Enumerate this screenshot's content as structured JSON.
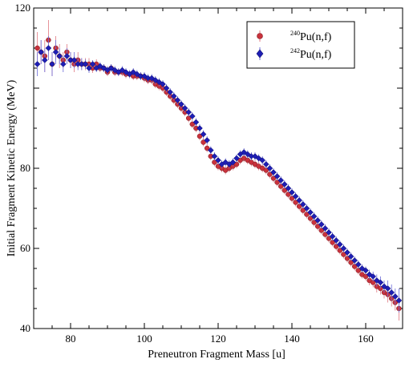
{
  "chart_data": {
    "type": "scatter",
    "xlabel": "Preneutron Fragment Mass [u]",
    "ylabel": "Initial Fragment Kinetic Energy (MeV)",
    "xlim": [
      70,
      170
    ],
    "ylim": [
      40,
      120
    ],
    "xticks": [
      80,
      100,
      120,
      140,
      160
    ],
    "yticks": [
      40,
      60,
      80,
      120
    ],
    "grid": false,
    "legend_position": "top-right",
    "series": [
      {
        "name_mass": "240",
        "name_rest": "Pu(n,f)",
        "marker": "circle",
        "color": "#c8323c",
        "error_color": "#e07880",
        "points": [
          [
            71,
            110,
            4
          ],
          [
            72,
            109,
            3
          ],
          [
            73,
            108,
            4
          ],
          [
            74,
            112,
            5
          ],
          [
            75,
            106,
            3
          ],
          [
            76,
            110,
            3
          ],
          [
            77,
            108,
            3
          ],
          [
            78,
            107,
            2
          ],
          [
            79,
            109,
            2
          ],
          [
            80,
            107,
            2
          ],
          [
            81,
            106,
            2
          ],
          [
            82,
            107,
            2
          ],
          [
            83,
            106,
            1.5
          ],
          [
            84,
            106,
            1.5
          ],
          [
            85,
            106,
            1.5
          ],
          [
            86,
            105,
            1.2
          ],
          [
            87,
            106,
            1.2
          ],
          [
            88,
            105,
            1
          ],
          [
            89,
            105,
            1
          ],
          [
            90,
            104,
            1
          ],
          [
            91,
            105,
            1
          ],
          [
            92,
            104,
            1
          ],
          [
            93,
            104,
            1
          ],
          [
            94,
            104,
            1
          ],
          [
            95,
            103.5,
            1
          ],
          [
            96,
            103.5,
            1
          ],
          [
            97,
            103,
            1
          ],
          [
            98,
            103,
            1
          ],
          [
            99,
            103,
            1
          ],
          [
            100,
            102.5,
            1
          ],
          [
            101,
            102,
            1
          ],
          [
            102,
            102,
            1
          ],
          [
            103,
            101,
            1
          ],
          [
            104,
            100.5,
            1
          ],
          [
            105,
            100,
            1
          ],
          [
            106,
            99,
            1
          ],
          [
            107,
            98,
            1
          ],
          [
            108,
            97,
            1
          ],
          [
            109,
            96,
            1
          ],
          [
            110,
            95,
            1
          ],
          [
            111,
            94,
            1
          ],
          [
            112,
            92.5,
            1
          ],
          [
            113,
            91,
            1
          ],
          [
            114,
            90,
            1
          ],
          [
            115,
            88,
            1
          ],
          [
            116,
            86.5,
            1
          ],
          [
            117,
            85,
            1
          ],
          [
            118,
            83,
            1
          ],
          [
            119,
            81.5,
            1
          ],
          [
            120,
            80.5,
            1
          ],
          [
            121,
            80,
            1
          ],
          [
            122,
            79.5,
            1
          ],
          [
            123,
            80,
            1
          ],
          [
            124,
            80.5,
            1
          ],
          [
            125,
            81,
            1
          ],
          [
            126,
            82,
            1
          ],
          [
            127,
            82.5,
            1
          ],
          [
            128,
            82,
            1
          ],
          [
            129,
            81.5,
            1
          ],
          [
            130,
            81,
            1
          ],
          [
            131,
            80.5,
            1
          ],
          [
            132,
            80,
            1
          ],
          [
            133,
            79.5,
            1
          ],
          [
            134,
            78.5,
            1
          ],
          [
            135,
            77.5,
            1
          ],
          [
            136,
            76.5,
            1
          ],
          [
            137,
            75.5,
            1
          ],
          [
            138,
            74.5,
            1
          ],
          [
            139,
            73.5,
            1
          ],
          [
            140,
            72.5,
            1
          ],
          [
            141,
            71.5,
            1
          ],
          [
            142,
            70.5,
            1
          ],
          [
            143,
            69.5,
            1
          ],
          [
            144,
            68.5,
            1
          ],
          [
            145,
            67.5,
            1
          ],
          [
            146,
            66.5,
            1
          ],
          [
            147,
            65.5,
            1
          ],
          [
            148,
            64.5,
            1
          ],
          [
            149,
            63.5,
            1
          ],
          [
            150,
            62.5,
            1
          ],
          [
            151,
            61.5,
            1
          ],
          [
            152,
            60.5,
            1
          ],
          [
            153,
            59.5,
            1
          ],
          [
            154,
            58.5,
            1
          ],
          [
            155,
            57.5,
            1
          ],
          [
            156,
            56.5,
            1
          ],
          [
            157,
            55.5,
            1
          ],
          [
            158,
            54.5,
            1
          ],
          [
            159,
            53.5,
            1
          ],
          [
            160,
            53,
            1
          ],
          [
            161,
            52,
            1.2
          ],
          [
            162,
            51.5,
            1.2
          ],
          [
            163,
            50.5,
            1.5
          ],
          [
            164,
            50,
            1.5
          ],
          [
            165,
            49,
            1.5
          ],
          [
            166,
            48.5,
            2
          ],
          [
            167,
            47.5,
            2
          ],
          [
            168,
            46.5,
            2
          ],
          [
            169,
            45,
            3
          ]
        ]
      },
      {
        "name_mass": "242",
        "name_rest": "Pu(n,f)",
        "marker": "diamond",
        "color": "#1e1eb4",
        "error_color": "#6a6ad8",
        "points": [
          [
            71,
            106,
            3
          ],
          [
            72,
            109,
            3
          ],
          [
            73,
            107,
            3
          ],
          [
            74,
            110,
            3
          ],
          [
            75,
            106,
            3
          ],
          [
            76,
            109,
            3
          ],
          [
            77,
            108,
            2
          ],
          [
            78,
            106,
            2
          ],
          [
            79,
            108,
            2
          ],
          [
            80,
            107,
            2
          ],
          [
            81,
            107,
            2
          ],
          [
            82,
            106,
            1.5
          ],
          [
            83,
            106,
            1.5
          ],
          [
            84,
            106,
            1.2
          ],
          [
            85,
            105,
            1.2
          ],
          [
            86,
            106,
            1
          ],
          [
            87,
            105,
            1
          ],
          [
            88,
            105.5,
            1
          ],
          [
            89,
            105,
            1
          ],
          [
            90,
            104.5,
            1
          ],
          [
            91,
            105,
            1
          ],
          [
            92,
            104.5,
            1
          ],
          [
            93,
            104,
            1
          ],
          [
            94,
            104.5,
            1
          ],
          [
            95,
            104,
            1
          ],
          [
            96,
            103.5,
            1
          ],
          [
            97,
            104,
            1
          ],
          [
            98,
            103.5,
            1
          ],
          [
            99,
            103,
            1
          ],
          [
            100,
            103,
            1
          ],
          [
            101,
            102.5,
            1
          ],
          [
            102,
            102.5,
            1
          ],
          [
            103,
            102,
            1
          ],
          [
            104,
            101.5,
            1
          ],
          [
            105,
            101,
            1
          ],
          [
            106,
            100,
            1
          ],
          [
            107,
            99,
            1
          ],
          [
            108,
            98,
            1
          ],
          [
            109,
            97,
            1
          ],
          [
            110,
            96,
            1
          ],
          [
            111,
            95,
            1
          ],
          [
            112,
            94,
            1
          ],
          [
            113,
            93,
            1
          ],
          [
            114,
            91.5,
            1
          ],
          [
            115,
            90,
            1
          ],
          [
            116,
            88.5,
            1
          ],
          [
            117,
            87,
            1
          ],
          [
            118,
            84.5,
            1
          ],
          [
            119,
            83,
            1
          ],
          [
            120,
            82,
            1
          ],
          [
            121,
            81,
            1
          ],
          [
            122,
            81.5,
            1
          ],
          [
            123,
            81,
            1
          ],
          [
            124,
            81.5,
            1
          ],
          [
            125,
            82.5,
            1
          ],
          [
            126,
            83.5,
            1
          ],
          [
            127,
            84,
            1
          ],
          [
            128,
            83.5,
            1
          ],
          [
            129,
            83,
            1
          ],
          [
            130,
            83,
            1
          ],
          [
            131,
            82.5,
            1
          ],
          [
            132,
            82,
            1
          ],
          [
            133,
            81,
            1
          ],
          [
            134,
            80,
            1
          ],
          [
            135,
            79,
            1
          ],
          [
            136,
            78,
            1
          ],
          [
            137,
            77,
            1
          ],
          [
            138,
            76,
            1
          ],
          [
            139,
            75,
            1
          ],
          [
            140,
            74,
            1
          ],
          [
            141,
            73,
            1
          ],
          [
            142,
            72,
            1
          ],
          [
            143,
            71,
            1
          ],
          [
            144,
            70,
            1
          ],
          [
            145,
            69,
            1
          ],
          [
            146,
            68,
            1
          ],
          [
            147,
            67,
            1
          ],
          [
            148,
            66,
            1
          ],
          [
            149,
            65,
            1
          ],
          [
            150,
            64,
            1
          ],
          [
            151,
            63,
            1
          ],
          [
            152,
            62,
            1
          ],
          [
            153,
            61,
            1
          ],
          [
            154,
            60,
            1
          ],
          [
            155,
            59,
            1
          ],
          [
            156,
            58,
            1
          ],
          [
            157,
            57,
            1
          ],
          [
            158,
            56,
            1
          ],
          [
            159,
            55,
            1
          ],
          [
            160,
            54.5,
            1
          ],
          [
            161,
            53.5,
            1.2
          ],
          [
            162,
            53,
            1.2
          ],
          [
            163,
            52,
            1.5
          ],
          [
            164,
            51.5,
            1.5
          ],
          [
            165,
            50.5,
            1.5
          ],
          [
            166,
            50,
            2
          ],
          [
            167,
            49,
            2
          ],
          [
            168,
            48,
            2
          ],
          [
            169,
            47,
            3
          ]
        ]
      }
    ]
  }
}
